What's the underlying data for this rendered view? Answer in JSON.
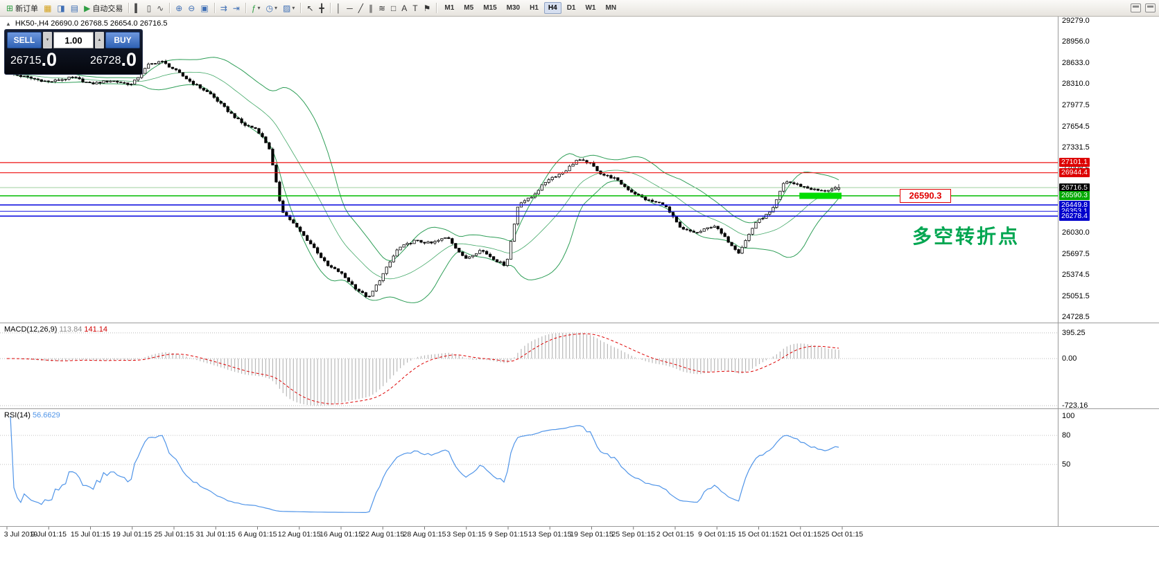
{
  "toolbar": {
    "groups": [
      {
        "items": [
          {
            "name": "new-order",
            "glyph": "⊞",
            "color": "#2f9e44",
            "label": "新订单"
          },
          {
            "name": "charts",
            "glyph": "▦",
            "color": "#d4a017"
          },
          {
            "name": "market-watch",
            "glyph": "◨",
            "color": "#3f6fb5"
          },
          {
            "name": "terminal",
            "glyph": "▤",
            "color": "#3f6fb5"
          },
          {
            "name": "auto-trading",
            "glyph": "▶",
            "color": "#2f9e44",
            "label": "自动交易"
          }
        ]
      },
      {
        "items": [
          {
            "name": "bar-chart",
            "glyph": "▍",
            "color": "#4a4a4a"
          },
          {
            "name": "candlestick-chart",
            "glyph": "▯",
            "color": "#4a4a4a"
          },
          {
            "name": "line-chart",
            "glyph": "∿",
            "color": "#4a4a4a"
          }
        ]
      },
      {
        "items": [
          {
            "name": "zoom-in",
            "glyph": "⊕",
            "color": "#3f6fb5"
          },
          {
            "name": "zoom-out",
            "glyph": "⊖",
            "color": "#3f6fb5"
          },
          {
            "name": "tile-windows",
            "glyph": "▣",
            "color": "#3f6fb5"
          }
        ]
      },
      {
        "items": [
          {
            "name": "auto-scroll",
            "glyph": "⇉",
            "color": "#3f6fb5"
          },
          {
            "name": "chart-shift",
            "glyph": "⇥",
            "color": "#3f6fb5"
          }
        ]
      },
      {
        "items": [
          {
            "name": "indicators",
            "glyph": "ƒ",
            "color": "#2f9e44",
            "dropdown": true
          },
          {
            "name": "periods",
            "glyph": "◷",
            "color": "#3f6fb5",
            "dropdown": true
          },
          {
            "name": "templates",
            "glyph": "▨",
            "color": "#3f6fb5",
            "dropdown": true
          }
        ]
      },
      {
        "items": [
          {
            "name": "cursor",
            "glyph": "↖",
            "color": "#333333"
          },
          {
            "name": "crosshair",
            "glyph": "╋",
            "color": "#333333"
          }
        ]
      },
      {
        "items": [
          {
            "name": "vertical-line",
            "glyph": "│",
            "color": "#333333"
          },
          {
            "name": "horizontal-line",
            "glyph": "─",
            "color": "#333333"
          },
          {
            "name": "trendline",
            "glyph": "╱",
            "color": "#333333"
          },
          {
            "name": "equidistant-channel",
            "glyph": "∥",
            "color": "#333333"
          },
          {
            "name": "fibonacci",
            "glyph": "≋",
            "color": "#333333"
          },
          {
            "name": "shapes",
            "glyph": "□",
            "color": "#333333"
          },
          {
            "name": "text",
            "glyph": "A",
            "color": "#333333"
          },
          {
            "name": "text-label",
            "glyph": "T",
            "color": "#333333"
          },
          {
            "name": "arrow-tools",
            "glyph": "⚑",
            "color": "#333333"
          }
        ]
      }
    ],
    "timeframes": [
      "M1",
      "M5",
      "M15",
      "M30",
      "H1",
      "H4",
      "D1",
      "W1",
      "MN"
    ],
    "active_timeframe": "H4"
  },
  "chart": {
    "symbol_title": "HK50-,H4  26690.0 26768.5 26654.0 26716.5"
  },
  "trade_panel": {
    "sell_label": "SELL",
    "buy_label": "BUY",
    "volume": "1.00",
    "sell_price_main": "26715",
    "sell_price_big": ".0",
    "buy_price_main": "26728",
    "buy_price_big": ".0"
  },
  "macd_panel": {
    "title": "MACD(12,26,9)",
    "value_main": "113.84",
    "value_signal": "141.14",
    "axis": [
      "395.25",
      "0.00",
      "-723.16"
    ]
  },
  "rsi_panel": {
    "title": "RSI(14)",
    "value": "56.6629",
    "axis": [
      "100",
      "80",
      "50"
    ]
  },
  "price_axis": {
    "ladder": [
      "29279.0",
      "28956.0",
      "28633.0",
      "28310.0",
      "27977.5",
      "27654.5",
      "27331.5",
      "27008.5",
      "26685.5",
      "26362.5",
      "26030.0",
      "25697.5",
      "25374.5",
      "25051.5",
      "24728.5"
    ]
  },
  "time_axis": {
    "labels": [
      "3 Jul 2019",
      "9 Jul 01:15",
      "15 Jul 01:15",
      "19 Jul 01:15",
      "25 Jul 01:15",
      "31 Jul 01:15",
      "6 Aug 01:15",
      "12 Aug 01:15",
      "16 Aug 01:15",
      "22 Aug 01:15",
      "28 Aug 01:15",
      "3 Sep 01:15",
      "9 Sep 01:15",
      "13 Sep 01:15",
      "19 Sep 01:15",
      "25 Sep 01:15",
      "2 Oct 01:15",
      "9 Oct 01:15",
      "15 Oct 01:15",
      "21 Oct 01:15",
      "25 Oct 01:15"
    ]
  },
  "annotations": {
    "price_callout": "26590.3",
    "note_text": "多空转折点",
    "note_color": "#00a651",
    "highlight": {
      "price": 26590.3,
      "from_candle": 230,
      "to_candle": 241,
      "color": "#00dd00"
    }
  },
  "chart_data": {
    "type": "candlestick",
    "symbol": "HK50-",
    "timeframe": "H4",
    "last_ohlc": {
      "o": 26690.0,
      "h": 26768.5,
      "l": 26654.0,
      "c": 26716.5
    },
    "price_top": 29279.0,
    "price_bottom": 24728.5,
    "candles": 242,
    "price_path": [
      [
        0,
        28480
      ],
      [
        0.02,
        28420
      ],
      [
        0.05,
        28340
      ],
      [
        0.08,
        28410
      ],
      [
        0.1,
        28310
      ],
      [
        0.125,
        28360
      ],
      [
        0.15,
        28300
      ],
      [
        0.17,
        28600
      ],
      [
        0.185,
        28660
      ],
      [
        0.2,
        28540
      ],
      [
        0.22,
        28350
      ],
      [
        0.245,
        28150
      ],
      [
        0.265,
        27900
      ],
      [
        0.285,
        27680
      ],
      [
        0.3,
        27620
      ],
      [
        0.315,
        27340
      ],
      [
        0.33,
        26380
      ],
      [
        0.35,
        26080
      ],
      [
        0.37,
        25780
      ],
      [
        0.385,
        25520
      ],
      [
        0.4,
        25420
      ],
      [
        0.42,
        25160
      ],
      [
        0.435,
        25020
      ],
      [
        0.45,
        25340
      ],
      [
        0.47,
        25780
      ],
      [
        0.49,
        25900
      ],
      [
        0.51,
        25860
      ],
      [
        0.53,
        25960
      ],
      [
        0.55,
        25620
      ],
      [
        0.57,
        25760
      ],
      [
        0.59,
        25580
      ],
      [
        0.6,
        25520
      ],
      [
        0.615,
        26480
      ],
      [
        0.63,
        26560
      ],
      [
        0.65,
        26840
      ],
      [
        0.67,
        26960
      ],
      [
        0.685,
        27140
      ],
      [
        0.7,
        27100
      ],
      [
        0.715,
        26920
      ],
      [
        0.73,
        26860
      ],
      [
        0.75,
        26660
      ],
      [
        0.77,
        26520
      ],
      [
        0.79,
        26460
      ],
      [
        0.81,
        26080
      ],
      [
        0.83,
        26020
      ],
      [
        0.85,
        26140
      ],
      [
        0.865,
        25920
      ],
      [
        0.88,
        25720
      ],
      [
        0.9,
        26180
      ],
      [
        0.92,
        26360
      ],
      [
        0.935,
        26820
      ],
      [
        0.95,
        26760
      ],
      [
        0.965,
        26700
      ],
      [
        0.98,
        26660
      ],
      [
        1,
        26716.5
      ]
    ],
    "levels": [
      {
        "price": 27101.1,
        "label": "27101.1",
        "line_color": "#ee1111",
        "tag_color": "#dd0000",
        "width": 1.2
      },
      {
        "price": 26944.4,
        "label": "26944.4",
        "line_color": "#ee1111",
        "tag_color": "#dd0000",
        "width": 1.2
      },
      {
        "price": 26716.5,
        "label": "26716.5",
        "line_color": "#9ccf9c",
        "tag_color": "#000000",
        "width": 1
      },
      {
        "price": 26590.3,
        "label": "26590.3",
        "line_color": "#00bb00",
        "tag_color": "#00a800",
        "width": 1.6
      },
      {
        "price": 26449.8,
        "label": "26449.8",
        "line_color": "#1616e0",
        "tag_color": "#0000cc",
        "width": 1.6
      },
      {
        "price": 26353.1,
        "label": "26353.1",
        "line_color": "#1616e0",
        "tag_color": "#0000cc",
        "width": 1
      },
      {
        "price": 26278.4,
        "label": "26278.4",
        "line_color": "#1616e0",
        "tag_color": "#0000cc",
        "width": 1.6
      }
    ],
    "indicators": {
      "bollinger": {
        "period": 20,
        "deviation": 2,
        "color": "#2e9e57"
      },
      "macd": {
        "fast": 12,
        "slow": 26,
        "signal": 9,
        "histogram_color": "#b8b8b8",
        "signal_color": "#dd0000",
        "grid": [
          395.25,
          0,
          -723.16
        ]
      },
      "rsi": {
        "period": 14,
        "color": "#4f94e8",
        "grid": [
          80,
          50
        ]
      }
    }
  }
}
